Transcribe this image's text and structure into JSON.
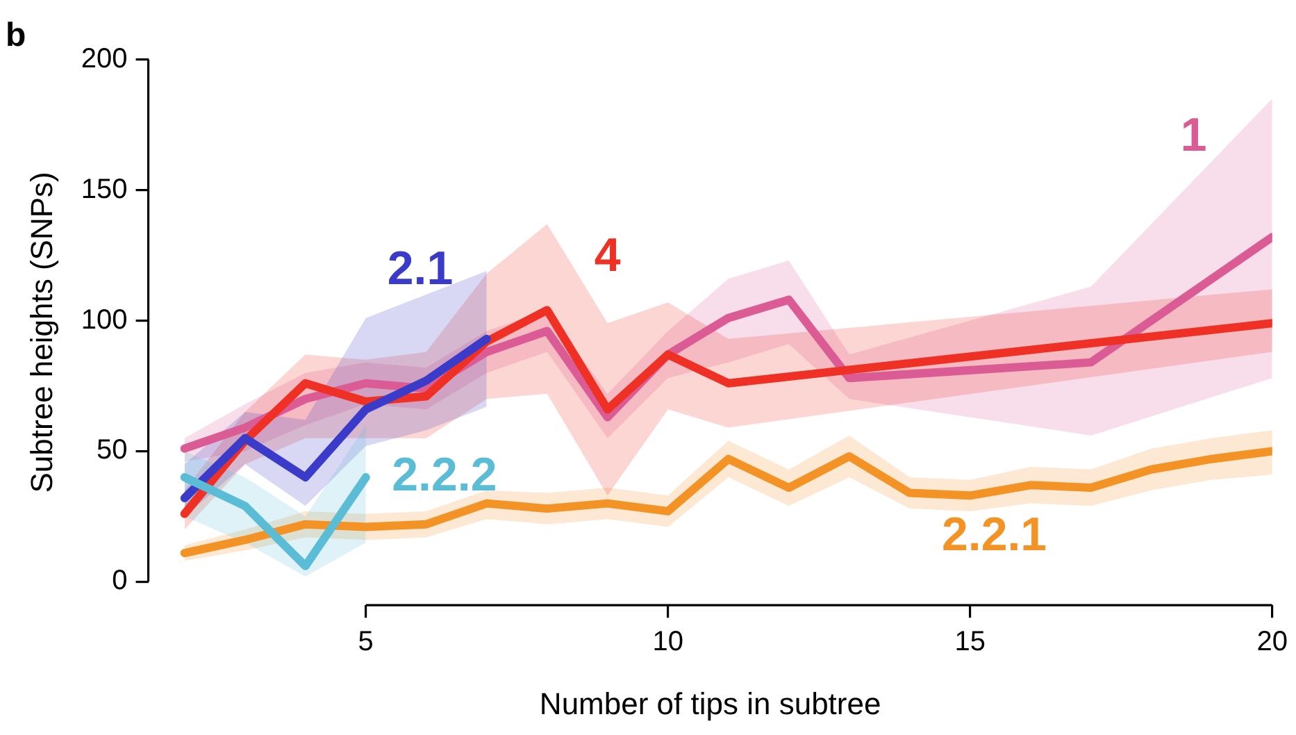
{
  "chart_data": {
    "type": "line",
    "title": "b",
    "xlabel": "Number of tips in subtree",
    "ylabel": "Subtree heights (SNPs)",
    "xlim": [
      1.4,
      20
    ],
    "ylim": [
      -9,
      200
    ],
    "xticks": [
      5,
      10,
      15,
      20
    ],
    "yticks": [
      0,
      50,
      100,
      150,
      200
    ],
    "grid": false,
    "series": [
      {
        "name": "2.2.1",
        "color": "#f39325",
        "x": [
          2,
          3,
          4,
          5,
          6,
          7,
          8,
          9,
          10,
          11,
          12,
          13,
          14,
          15,
          16,
          17,
          18,
          19,
          20
        ],
        "values": [
          11,
          16,
          22,
          21,
          22,
          30,
          28,
          30,
          27,
          47,
          36,
          48,
          34,
          33,
          37,
          36,
          43,
          47,
          50
        ],
        "lower": [
          8,
          12,
          17,
          16,
          17,
          24,
          22,
          24,
          21,
          40,
          29,
          40,
          28,
          27,
          30,
          29,
          35,
          39,
          41
        ],
        "upper": [
          14,
          20,
          27,
          26,
          27,
          35,
          34,
          36,
          33,
          54,
          43,
          56,
          40,
          39,
          44,
          43,
          51,
          55,
          58
        ]
      },
      {
        "name": "1",
        "color": "#db5b94",
        "x": [
          2,
          3,
          4,
          5,
          6,
          7,
          8,
          9,
          10,
          11,
          12,
          13,
          17,
          20
        ],
        "values": [
          51,
          59,
          70,
          76,
          74,
          88,
          96,
          63,
          87,
          101,
          108,
          78,
          84,
          132
        ],
        "lower": [
          46,
          50,
          60,
          68,
          66,
          80,
          88,
          55,
          78,
          84,
          91,
          70,
          56,
          78
        ],
        "upper": [
          55,
          68,
          80,
          84,
          82,
          96,
          104,
          72,
          96,
          116,
          123,
          87,
          113,
          185
        ]
      },
      {
        "name": "4",
        "color": "#ee3124",
        "x": [
          2,
          3,
          4,
          5,
          6,
          7,
          8,
          9,
          10,
          11,
          20
        ],
        "values": [
          26,
          54,
          76,
          69,
          71,
          92,
          104,
          66,
          87,
          76,
          99
        ],
        "lower": [
          20,
          45,
          55,
          55,
          55,
          70,
          72,
          33,
          66,
          59,
          88
        ],
        "upper": [
          35,
          65,
          87,
          85,
          88,
          118,
          137,
          99,
          107,
          93,
          112
        ]
      },
      {
        "name": "2.1",
        "color": "#3a3cc9",
        "x": [
          2,
          3,
          4,
          5,
          6,
          7
        ],
        "values": [
          32,
          55,
          40,
          66,
          77,
          93
        ],
        "lower": [
          25,
          45,
          29,
          52,
          58,
          67
        ],
        "upper": [
          45,
          65,
          62,
          101,
          110,
          119
        ]
      },
      {
        "name": "2.2.2",
        "color": "#5bbcd6",
        "x": [
          2,
          3,
          4,
          5
        ],
        "values": [
          40,
          29,
          6,
          40
        ],
        "lower": [
          25,
          15,
          2,
          15
        ],
        "upper": [
          50,
          40,
          25,
          60
        ]
      }
    ]
  }
}
